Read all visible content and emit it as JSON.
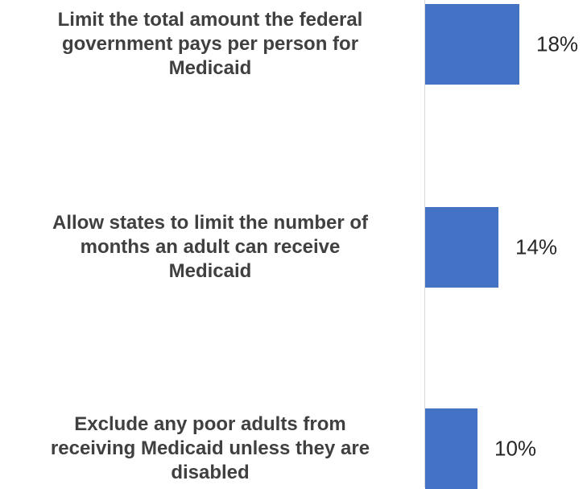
{
  "chart_data": {
    "type": "bar",
    "orientation": "horizontal",
    "categories": [
      "Limit the total amount the federal government pays per person for Medicaid",
      "Allow states to limit the number of months an adult can receive Medicaid",
      "Exclude any poor adults from receiving Medicaid unless they are disabled"
    ],
    "values": [
      18,
      14,
      10
    ],
    "value_labels": [
      "18%",
      "14%",
      "10%"
    ],
    "unit": "%",
    "xlim": [
      0,
      100
    ],
    "grid": false,
    "legend": "none",
    "colors": {
      "bar": "#4472c4",
      "axis": "#d9d9d9",
      "label": "#404040"
    }
  }
}
